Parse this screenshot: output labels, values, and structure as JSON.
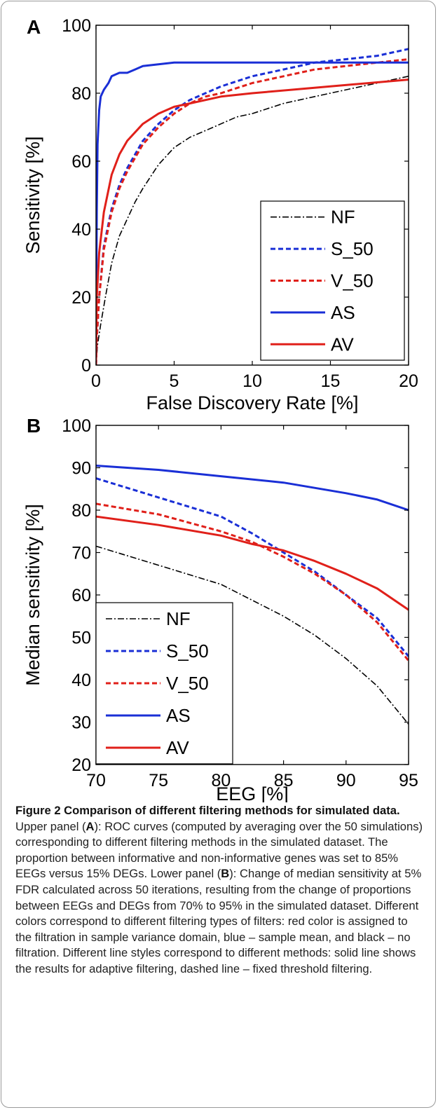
{
  "chart_data": [
    {
      "panel": "A",
      "type": "line",
      "xlabel": "False Discovery Rate [%]",
      "ylabel": "Sensitivity [%]",
      "xlim": [
        0,
        20
      ],
      "ylim": [
        0,
        100
      ],
      "xticks": [
        0,
        5,
        10,
        15,
        20
      ],
      "yticks": [
        0,
        20,
        40,
        60,
        80,
        100
      ],
      "legend_position": "lower-right",
      "series": [
        {
          "name": "NF",
          "color": "#000000",
          "style": "dashdot",
          "x": [
            0,
            0.1,
            0.3,
            0.6,
            1.0,
            1.5,
            2.0,
            2.5,
            3.0,
            4.0,
            5.0,
            6.0,
            7.0,
            8.0,
            9.0,
            10.0,
            12.0,
            14.0,
            16.0,
            18.0,
            20.0
          ],
          "y": [
            0,
            6,
            12,
            20,
            30,
            38,
            43,
            48,
            52,
            59,
            64,
            67,
            69,
            71,
            73,
            74,
            77,
            79,
            81,
            83,
            85
          ]
        },
        {
          "name": "S_50",
          "color": "#1a2fd6",
          "style": "dashed",
          "x": [
            0,
            0.05,
            0.2,
            0.5,
            1.0,
            1.5,
            2.0,
            3.0,
            4.0,
            5.0,
            6.0,
            7.0,
            8.0,
            10.0,
            12.0,
            14.0,
            16.0,
            18.0,
            20.0
          ],
          "y": [
            0,
            8,
            20,
            35,
            46,
            53,
            58,
            66,
            71,
            75,
            78,
            80,
            82,
            85,
            87,
            89,
            90,
            91,
            93
          ]
        },
        {
          "name": "V_50",
          "color": "#e0201a",
          "style": "dashed",
          "x": [
            0,
            0.05,
            0.2,
            0.5,
            1.0,
            1.5,
            2.0,
            3.0,
            4.0,
            5.0,
            6.0,
            7.0,
            8.0,
            10.0,
            12.0,
            14.0,
            16.0,
            18.0,
            20.0
          ],
          "y": [
            0,
            8,
            20,
            34,
            45,
            52,
            57,
            65,
            70,
            74,
            77,
            79,
            80,
            83,
            85,
            87,
            88,
            89,
            90
          ]
        },
        {
          "name": "AS",
          "color": "#1a2fd6",
          "style": "solid",
          "x": [
            0,
            0.05,
            0.1,
            0.2,
            0.3,
            0.5,
            0.8,
            1.0,
            1.5,
            2.0,
            2.5,
            3.0,
            5.0,
            10.0,
            15.0,
            20.0
          ],
          "y": [
            0,
            45,
            65,
            75,
            79,
            81,
            83,
            85,
            86,
            86,
            87,
            88,
            89,
            89,
            89,
            89
          ]
        },
        {
          "name": "AV",
          "color": "#e0201a",
          "style": "solid",
          "x": [
            0,
            0.05,
            0.2,
            0.5,
            1.0,
            1.5,
            2.0,
            3.0,
            4.0,
            5.0,
            6.0,
            8.0,
            10.0,
            15.0,
            20.0
          ],
          "y": [
            0,
            20,
            33,
            45,
            56,
            62,
            66,
            71,
            74,
            76,
            77,
            79,
            80,
            82,
            84
          ]
        }
      ]
    },
    {
      "panel": "B",
      "type": "line",
      "xlabel": "EEG [%]",
      "ylabel": "Median sensitivity [%]",
      "xlim": [
        70,
        95
      ],
      "ylim": [
        20,
        100
      ],
      "xticks": [
        70,
        75,
        80,
        85,
        90,
        95
      ],
      "yticks": [
        20,
        30,
        40,
        50,
        60,
        70,
        80,
        90,
        100
      ],
      "legend_position": "lower-left",
      "series": [
        {
          "name": "NF",
          "color": "#000000",
          "style": "dashdot",
          "x": [
            70,
            75,
            80,
            85,
            87.5,
            90,
            92.5,
            95
          ],
          "y": [
            71.5,
            67,
            62.5,
            55,
            50.5,
            45,
            38.5,
            29.5
          ]
        },
        {
          "name": "S_50",
          "color": "#1a2fd6",
          "style": "dashed",
          "x": [
            70,
            75,
            80,
            82.5,
            85,
            87.5,
            90,
            92.5,
            95
          ],
          "y": [
            87.5,
            83,
            78.5,
            74.5,
            70,
            65.5,
            60,
            54.5,
            45.5
          ]
        },
        {
          "name": "V_50",
          "color": "#e0201a",
          "style": "dashed",
          "x": [
            70,
            75,
            80,
            82.5,
            85,
            87.5,
            90,
            92.5,
            95
          ],
          "y": [
            81.5,
            79,
            75,
            72.5,
            69,
            65,
            60,
            53.5,
            44.5
          ]
        },
        {
          "name": "AS",
          "color": "#1a2fd6",
          "style": "solid",
          "x": [
            70,
            75,
            80,
            85,
            90,
            92.5,
            95
          ],
          "y": [
            90.5,
            89.5,
            88,
            86.5,
            84,
            82.5,
            80
          ]
        },
        {
          "name": "AV",
          "color": "#e0201a",
          "style": "solid",
          "x": [
            70,
            75,
            80,
            82.5,
            85,
            87.5,
            90,
            92.5,
            95
          ],
          "y": [
            78.5,
            76.5,
            74,
            72,
            70.5,
            68,
            65,
            61.5,
            56.5
          ]
        }
      ]
    }
  ],
  "caption": {
    "title": "Figure 2 Comparison of different filtering methods for simulated data.",
    "p1": " Upper panel (",
    "a": "A",
    "p2": "): ROC curves (computed by averaging over the 50 simulations) corresponding to different filtering methods in the simulated dataset. The proportion between informative and non-informative genes was set to 85% EEGs versus 15% DEGs. Lower panel (",
    "b": "B",
    "p3": "): Change of median sensitivity at 5% FDR calculated across 50 iterations, resulting from the change of proportions between EEGs and DEGs from 70% to 95% in the simulated dataset. Different colors correspond to different filtering types of filters: red color is assigned to the filtration in sample variance domain, blue – sample mean, and black – no filtration. Different line styles correspond to different methods: solid line shows the results for adaptive filtering, dashed line – fixed threshold filtering."
  }
}
